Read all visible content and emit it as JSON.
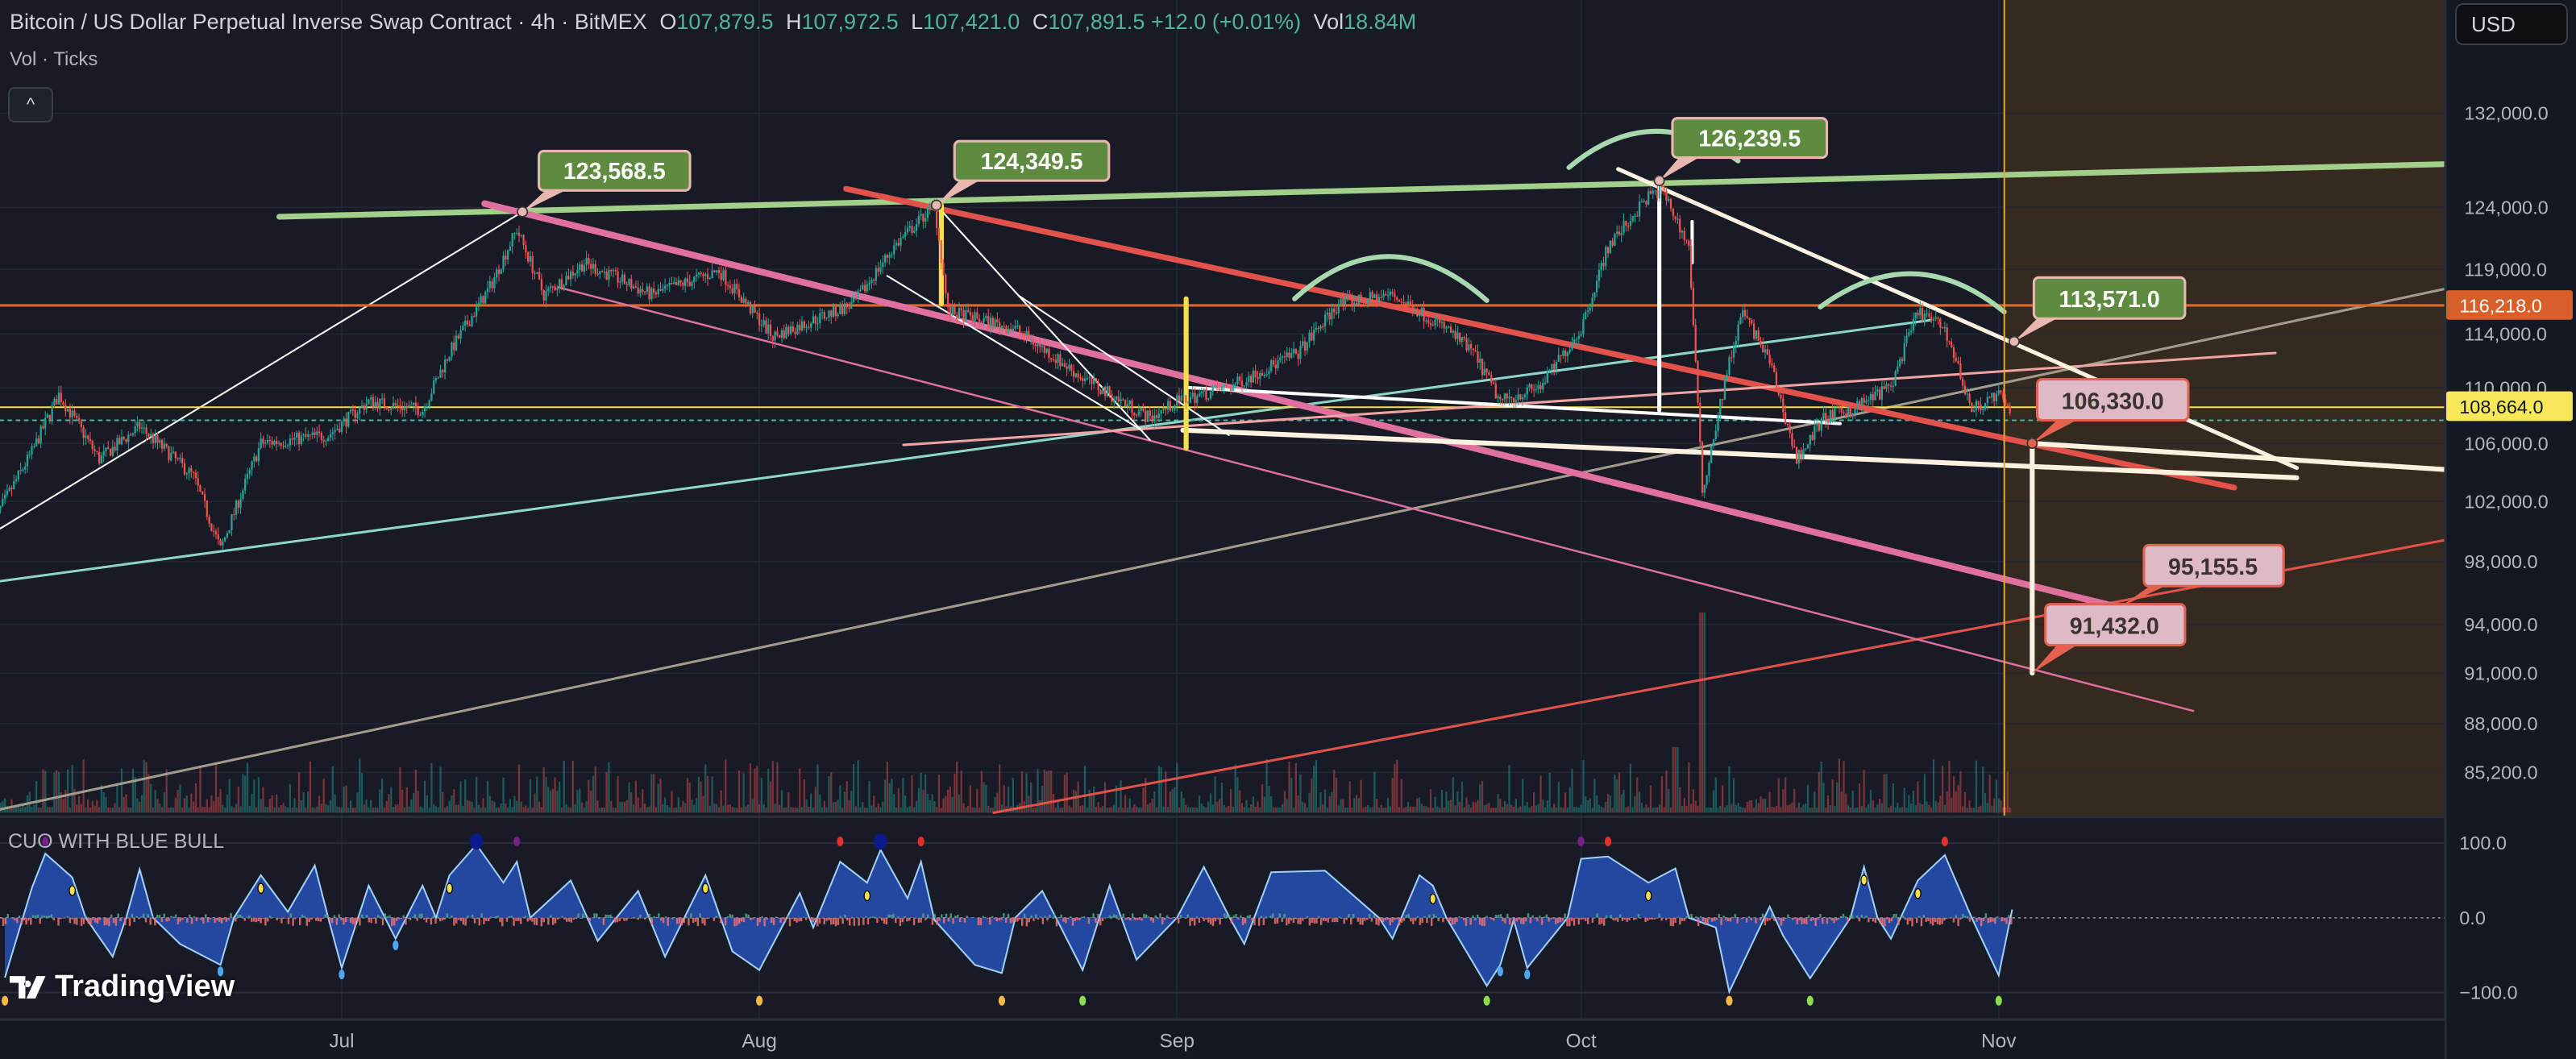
{
  "header": {
    "symbol_title": "Bitcoin / US Dollar Perpetual Inverse Swap Contract · 4h · BitMEX",
    "ohlc": {
      "o_label": "O",
      "o": "107,879.5",
      "h_label": "H",
      "h": "107,972.5",
      "l_label": "L",
      "l": "107,421.0",
      "c_label": "C",
      "c": "107,891.5",
      "change": "+12.0 (+0.01%)",
      "vol_label": "Vol",
      "vol": "18.84M"
    },
    "vol_indicator": "Vol · Ticks",
    "collapse_icon": "chevron-up-icon",
    "collapse_glyph": "^"
  },
  "currency": "USD",
  "price_axis": {
    "scale": "log",
    "ticks": [
      "132,000.0",
      "124,000.0",
      "119,000.0",
      "114,000.0",
      "110,000.0",
      "106,000.0",
      "102,000.0",
      "98,000.0",
      "94,000.0",
      "91,000.0",
      "88,000.0",
      "85,200.0"
    ],
    "badges": [
      {
        "value": "116,218.0",
        "color": "#d85f2a",
        "text_color": "#ffffff"
      },
      {
        "value": "108,664.0",
        "color": "#f7e85a",
        "text_color": "#131722"
      }
    ]
  },
  "time_axis": {
    "ticks": [
      "Jul",
      "Aug",
      "Sep",
      "Oct",
      "Nov"
    ]
  },
  "indicator": {
    "name": "CUO WITH BLUE BULL",
    "ticks": [
      "100.0",
      "0.0",
      "−100.0"
    ]
  },
  "annotations": [
    {
      "text": "123,568.5",
      "style": "green"
    },
    {
      "text": "124,349.5",
      "style": "green"
    },
    {
      "text": "126,239.5",
      "style": "green"
    },
    {
      "text": "113,571.0",
      "style": "green"
    },
    {
      "text": "106,330.0",
      "style": "pink"
    },
    {
      "text": "95,155.5",
      "style": "pink"
    },
    {
      "text": "91,432.0",
      "style": "pink"
    }
  ],
  "watermark": "TradingView",
  "colors": {
    "background": "#181b26",
    "future_zone": "#352a20",
    "candle_up": "#26a69a",
    "candle_down": "#ef5350",
    "osc_fill": "#2448a0",
    "osc_edge": "#9fd0f7",
    "label_green": "#5e8b3f",
    "label_pink": "#deb9c6",
    "label_border_green": "#eab7b0",
    "label_border_pink": "#e4614f"
  },
  "chart_data": {
    "type": "candlestick",
    "interval": "4h",
    "price_path": [
      [
        "Jun 5",
        100400
      ],
      [
        "Jun 8",
        105400
      ],
      [
        "Jun 10",
        109500
      ],
      [
        "Jun 13",
        104900
      ],
      [
        "Jun 16",
        107200
      ],
      [
        "Jun 20",
        103700
      ],
      [
        "Jun 22",
        98800
      ],
      [
        "Jun 25",
        106000
      ],
      [
        "Jun 30",
        106600
      ],
      [
        "Jul 3",
        109000
      ],
      [
        "Jul 7",
        108400
      ],
      [
        "Jul 9",
        112600
      ],
      [
        "Jul 12",
        117600
      ],
      [
        "Jul 14",
        122200
      ],
      [
        "Jul 16",
        117000
      ],
      [
        "Jul 19",
        119500
      ],
      [
        "Jul 24",
        117000
      ],
      [
        "Jul 29",
        118900
      ],
      [
        "Aug 2",
        113800
      ],
      [
        "Aug 8",
        116300
      ],
      [
        "Aug 11",
        120800
      ],
      [
        "Aug 14",
        124200
      ],
      [
        "Aug 15",
        115700
      ],
      [
        "Aug 20",
        114400
      ],
      [
        "Aug 25",
        110700
      ],
      [
        "Aug 30",
        107800
      ],
      [
        "Sep 1",
        109000
      ],
      [
        "Sep 5",
        110100
      ],
      [
        "Sep 10",
        112600
      ],
      [
        "Sep 13",
        116300
      ],
      [
        "Sep 17",
        117000
      ],
      [
        "Sep 21",
        114400
      ],
      [
        "Sep 23",
        112600
      ],
      [
        "Sep 25",
        109000
      ],
      [
        "Sep 28",
        110100
      ],
      [
        "Oct 1",
        114400
      ],
      [
        "Oct 3",
        120800
      ],
      [
        "Oct 6",
        124900
      ],
      [
        "Oct 7",
        125500
      ],
      [
        "Oct 9",
        120800
      ],
      [
        "Oct 10",
        102600
      ],
      [
        "Oct 12",
        111900
      ],
      [
        "Oct 13",
        115700
      ],
      [
        "Oct 15",
        111900
      ],
      [
        "Oct 17",
        104900
      ],
      [
        "Oct 19",
        107800
      ],
      [
        "Oct 21",
        108400
      ],
      [
        "Oct 24",
        110100
      ],
      [
        "Oct 26",
        115700
      ],
      [
        "Oct 28",
        114400
      ],
      [
        "Oct 30",
        108400
      ],
      [
        "Nov 1",
        109500
      ],
      [
        "Nov 2",
        107891.5
      ]
    ],
    "last_close": 107891.5,
    "horizontal_levels": [
      116218.0,
      108664.0
    ],
    "indicator_series": [
      [
        "Jun 6",
        -80
      ],
      [
        "Jun 8",
        40
      ],
      [
        "Jun 9",
        86
      ],
      [
        "Jun 11",
        54
      ],
      [
        "Jun 12",
        0
      ],
      [
        "Jun 14",
        -52
      ],
      [
        "Jun 15",
        0
      ],
      [
        "Jun 16",
        65
      ],
      [
        "Jun 17",
        0
      ],
      [
        "Jun 19",
        -35
      ],
      [
        "Jun 22",
        -63
      ],
      [
        "Jun 23",
        0
      ],
      [
        "Jun 25",
        57
      ],
      [
        "Jun 27",
        8
      ],
      [
        "Jun 29",
        70
      ],
      [
        "Jun 30",
        0
      ],
      [
        "Jul 1",
        -67
      ],
      [
        "Jul 3",
        43
      ],
      [
        "Jul 5",
        -28
      ],
      [
        "Jul 7",
        43
      ],
      [
        "Jul 8",
        0
      ],
      [
        "Jul 9",
        57
      ],
      [
        "Jul 11",
        98
      ],
      [
        "Jul 13",
        47
      ],
      [
        "Jul 14",
        75
      ],
      [
        "Jul 15",
        0
      ],
      [
        "Jul 18",
        50
      ],
      [
        "Jul 20",
        -31
      ],
      [
        "Jul 23",
        36
      ],
      [
        "Jul 25",
        -52
      ],
      [
        "Jul 28",
        57
      ],
      [
        "Jul 30",
        -45
      ],
      [
        "Aug 1",
        -70
      ],
      [
        "Aug 4",
        33
      ],
      [
        "Aug 5",
        -13
      ],
      [
        "Aug 7",
        75
      ],
      [
        "Aug 9",
        47
      ],
      [
        "Aug 10",
        91
      ],
      [
        "Aug 12",
        26
      ],
      [
        "Aug 13",
        75
      ],
      [
        "Aug 14",
        -3
      ],
      [
        "Aug 17",
        -63
      ],
      [
        "Aug 19",
        -74
      ],
      [
        "Aug 20",
        0
      ],
      [
        "Aug 22",
        36
      ],
      [
        "Aug 25",
        -70
      ],
      [
        "Aug 27",
        43
      ],
      [
        "Aug 29",
        -56
      ],
      [
        "Sep 1",
        0
      ],
      [
        "Sep 3",
        68
      ],
      [
        "Sep 5",
        -3
      ],
      [
        "Sep 6",
        -35
      ],
      [
        "Sep 8",
        61
      ],
      [
        "Sep 12",
        63
      ],
      [
        "Sep 16",
        0
      ],
      [
        "Sep 17",
        -28
      ],
      [
        "Sep 19",
        57
      ],
      [
        "Sep 20",
        43
      ],
      [
        "Sep 21",
        0
      ],
      [
        "Sep 24",
        -91
      ],
      [
        "Sep 25",
        -63
      ],
      [
        "Sep 26",
        -3
      ],
      [
        "Sep 27",
        -67
      ],
      [
        "Sep 30",
        0
      ],
      [
        "Oct 1",
        79
      ],
      [
        "Oct 3",
        82
      ],
      [
        "Oct 6",
        47
      ],
      [
        "Oct 8",
        66
      ],
      [
        "Oct 9",
        0
      ],
      [
        "Oct 11",
        -13
      ],
      [
        "Oct 12",
        -99
      ],
      [
        "Oct 15",
        15
      ],
      [
        "Oct 16",
        -24
      ],
      [
        "Oct 18",
        -81
      ],
      [
        "Oct 21",
        0
      ],
      [
        "Oct 22",
        68
      ],
      [
        "Oct 23",
        0
      ],
      [
        "Oct 24",
        -28
      ],
      [
        "Oct 26",
        50
      ],
      [
        "Oct 28",
        84
      ],
      [
        "Oct 30",
        0
      ],
      [
        "Nov 1",
        -77
      ],
      [
        "Nov 2",
        11
      ]
    ],
    "indicator_range": [
      -100,
      100
    ]
  }
}
